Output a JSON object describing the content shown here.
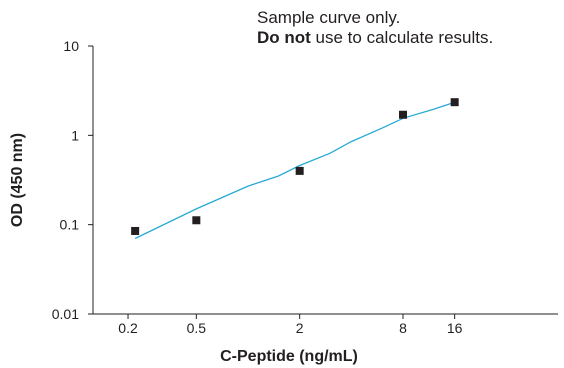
{
  "note": {
    "line1": "Sample curve only.",
    "line2_bold": "Do not",
    "line2_rest": " use to calculate results."
  },
  "chart_data": {
    "type": "scatter",
    "title": "",
    "xlabel": "C-Peptide (ng/mL)",
    "ylabel": "OD (450 nm)",
    "x_scale": "log",
    "y_scale": "log",
    "xlim": [
      0.125,
      64
    ],
    "ylim": [
      0.01,
      10
    ],
    "x_ticks": [
      0.2,
      0.5,
      2,
      8,
      16
    ],
    "x_tick_labels": [
      "0.2",
      "0.5",
      "2",
      "8",
      "16"
    ],
    "y_ticks": [
      0.01,
      0.1,
      1,
      10
    ],
    "y_tick_labels": [
      "0.01",
      "0.1",
      "1",
      "10"
    ],
    "grid": false,
    "series": [
      {
        "kind": "points",
        "x": [
          0.22,
          0.5,
          2,
          8,
          16
        ],
        "y": [
          0.085,
          0.112,
          0.4,
          1.7,
          2.35
        ]
      },
      {
        "kind": "fit-line",
        "x": [
          0.22,
          0.5,
          1,
          1.5,
          2,
          3,
          4,
          6,
          8,
          12,
          16
        ],
        "y": [
          0.07,
          0.15,
          0.27,
          0.35,
          0.46,
          0.63,
          0.85,
          1.2,
          1.55,
          1.95,
          2.35
        ]
      }
    ],
    "colors": {
      "points": "#231f20",
      "line": "#29a9d6",
      "axis": "#231f20"
    }
  }
}
